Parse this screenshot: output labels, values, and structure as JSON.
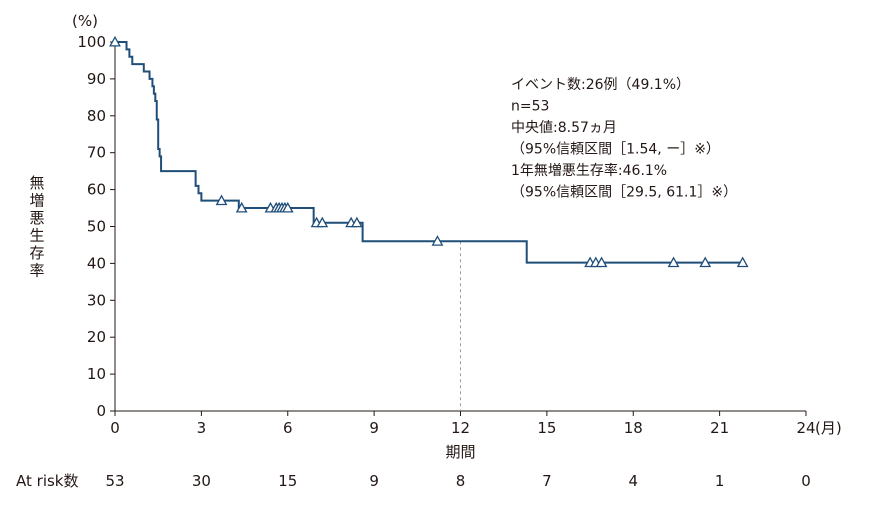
{
  "chart_data": {
    "type": "line",
    "subtype": "kaplan-meier",
    "colors": {
      "curve": "#1f4e79",
      "axis": "#231815",
      "reference": "#9e9e9e"
    },
    "y_unit": "(%)",
    "x_unit": "(月)",
    "ylabel": "無増悪生存率",
    "xlabel": "期間",
    "xlim": [
      0,
      24
    ],
    "ylim": [
      0,
      100
    ],
    "x_ticks": [
      0,
      3,
      6,
      9,
      12,
      15,
      18,
      21,
      24
    ],
    "y_ticks": [
      0,
      10,
      20,
      30,
      40,
      50,
      60,
      70,
      80,
      90,
      100
    ],
    "grid": false,
    "reference_line_x": 12,
    "series": [
      {
        "step_points": [
          [
            0,
            100
          ],
          [
            0.4,
            100
          ],
          [
            0.4,
            98
          ],
          [
            0.5,
            98
          ],
          [
            0.5,
            96
          ],
          [
            0.6,
            96
          ],
          [
            0.6,
            94
          ],
          [
            1.0,
            94
          ],
          [
            1.0,
            92
          ],
          [
            1.2,
            92
          ],
          [
            1.2,
            90
          ],
          [
            1.3,
            90
          ],
          [
            1.3,
            88
          ],
          [
            1.35,
            88
          ],
          [
            1.35,
            86
          ],
          [
            1.4,
            86
          ],
          [
            1.4,
            84
          ],
          [
            1.45,
            84
          ],
          [
            1.45,
            79
          ],
          [
            1.5,
            79
          ],
          [
            1.5,
            71
          ],
          [
            1.55,
            71
          ],
          [
            1.55,
            69
          ],
          [
            1.6,
            69
          ],
          [
            1.6,
            65
          ],
          [
            2.8,
            65
          ],
          [
            2.8,
            61
          ],
          [
            2.9,
            61
          ],
          [
            2.9,
            59
          ],
          [
            3.0,
            59
          ],
          [
            3.0,
            57
          ],
          [
            4.3,
            57
          ],
          [
            4.3,
            55
          ],
          [
            6.9,
            55
          ],
          [
            6.9,
            51
          ],
          [
            8.6,
            51
          ],
          [
            8.6,
            46
          ],
          [
            14.3,
            46
          ],
          [
            14.3,
            40.2
          ],
          [
            21.8,
            40.2
          ]
        ],
        "censored": [
          [
            0,
            100
          ],
          [
            3.7,
            57
          ],
          [
            4.4,
            55
          ],
          [
            5.4,
            55
          ],
          [
            5.6,
            55
          ],
          [
            5.7,
            55
          ],
          [
            5.8,
            55
          ],
          [
            5.9,
            55
          ],
          [
            6.0,
            55
          ],
          [
            7.0,
            51
          ],
          [
            7.2,
            51
          ],
          [
            8.2,
            51
          ],
          [
            8.4,
            51
          ],
          [
            11.2,
            46
          ],
          [
            16.5,
            40.2
          ],
          [
            16.7,
            40.2
          ],
          [
            16.9,
            40.2
          ],
          [
            19.4,
            40.2
          ],
          [
            20.5,
            40.2
          ],
          [
            21.8,
            40.2
          ]
        ]
      }
    ],
    "annotations": [
      "イベント数:26例（49.1%）",
      "n=53",
      "中央値:8.57ヵ月",
      "（95%信頼区間［1.54, ー］※）",
      "1年無増悪生存率:46.1%",
      "（95%信頼区間［29.5, 61.1］※）"
    ],
    "at_risk": {
      "label": "At risk数",
      "times": [
        0,
        3,
        6,
        9,
        12,
        15,
        18,
        21,
        24
      ],
      "values": [
        53,
        30,
        15,
        9,
        8,
        7,
        4,
        1,
        0
      ]
    }
  }
}
